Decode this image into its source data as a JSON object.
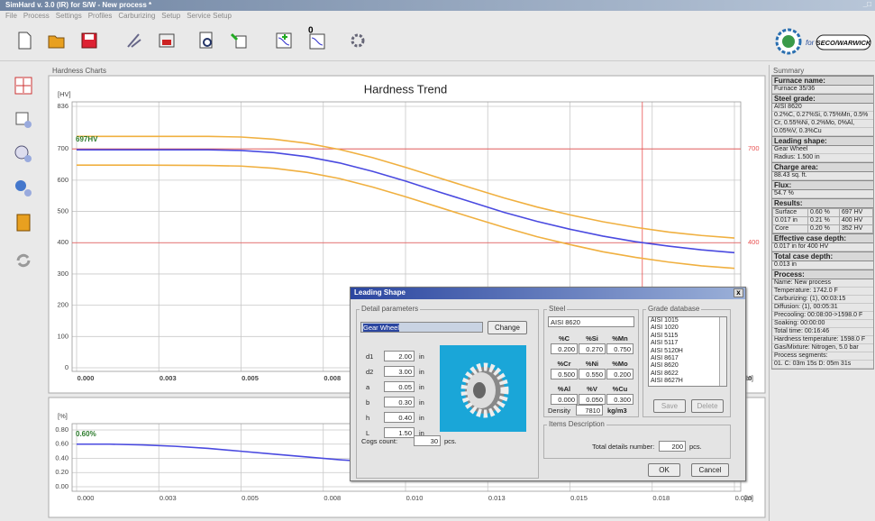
{
  "window": {
    "title": "SimHard v. 3.0 (IR) for S/W - New process *",
    "menu": [
      "File",
      "Process",
      "Settings",
      "Profiles",
      "Carburizing",
      "Setup",
      "Service Setup"
    ],
    "logo_text": "for",
    "logo_brand": "SECO/WARWICK"
  },
  "charts_panel": {
    "title": "Hardness Charts"
  },
  "hardness_chart": {
    "type": "line",
    "title": "Hardness Trend",
    "y_label": "[HV]",
    "x_label": "[in]",
    "annotation": "697HV",
    "x": [
      0,
      0.002,
      0.004,
      0.005,
      0.006,
      0.007,
      0.008,
      0.009,
      0.01,
      0.011,
      0.012,
      0.013,
      0.014,
      0.015,
      0.016,
      0.017,
      0.018,
      0.019,
      0.02
    ],
    "series": [
      {
        "color": "#f0b040",
        "values": [
          740,
          740,
          740,
          738,
          731,
          718,
          698,
          672,
          641,
          608,
          575,
          543,
          514,
          489,
          467,
          449,
          434,
          423,
          415
        ]
      },
      {
        "color": "#f0b040",
        "values": [
          648,
          648,
          647,
          645,
          638,
          625,
          605,
          578,
          547,
          514,
          481,
          449,
          419,
          394,
          371,
          353,
          338,
          326,
          318
        ]
      },
      {
        "color": "#4a4ae0",
        "values": [
          697,
          697,
          697,
          695,
          688,
          675,
          655,
          628,
          597,
          563,
          530,
          497,
          468,
          443,
          421,
          403,
          389,
          377,
          368
        ]
      }
    ],
    "xlim": [
      0,
      0.02
    ],
    "ylim": [
      0,
      836
    ],
    "xticks": [
      {
        "value": 0,
        "label": "0.000"
      },
      {
        "value": 0.0025,
        "label": "0.003"
      },
      {
        "value": 0.005,
        "label": "0.005"
      },
      {
        "value": 0.0075,
        "label": "0.008"
      },
      {
        "value": 0.01,
        "label": "0.010"
      },
      {
        "value": 0.0125,
        "label": "0.013"
      },
      {
        "value": 0.015,
        "label": "0.015"
      },
      {
        "value": 0.0175,
        "label": "0.018"
      },
      {
        "value": 0.02,
        "label": "0.020"
      }
    ],
    "yticks": [
      0,
      100,
      200,
      300,
      400,
      500,
      600,
      700,
      836
    ],
    "hlines": [
      700,
      400
    ],
    "vline": 0.0172,
    "marker_color": "#e85050",
    "grid": true
  },
  "carbon_chart": {
    "type": "line",
    "y_label": "[%]",
    "x_label": "[in]",
    "annotation": "0.60%",
    "x": [
      0,
      0.001,
      0.002,
      0.003,
      0.004,
      0.005,
      0.006,
      0.007,
      0.008,
      0.009,
      0.01,
      0.012,
      0.014,
      0.016,
      0.018,
      0.02
    ],
    "series": [
      {
        "color": "#4a4ae0",
        "values": [
          0.6,
          0.6,
          0.59,
          0.57,
          0.54,
          0.5,
          0.46,
          0.42,
          0.38,
          0.35,
          0.32,
          0.28,
          0.25,
          0.22,
          0.21,
          0.2
        ]
      }
    ],
    "xlim": [
      0,
      0.02
    ],
    "ylim": [
      0,
      0.8
    ],
    "xticks": [
      {
        "value": 0,
        "label": "0.000"
      },
      {
        "value": 0.0025,
        "label": "0.003"
      },
      {
        "value": 0.005,
        "label": "0.005"
      },
      {
        "value": 0.0075,
        "label": "0.008"
      },
      {
        "value": 0.01,
        "label": "0.010"
      },
      {
        "value": 0.0125,
        "label": "0.013"
      },
      {
        "value": 0.015,
        "label": "0.015"
      },
      {
        "value": 0.0175,
        "label": "0.018"
      },
      {
        "value": 0.02,
        "label": "0.020"
      }
    ],
    "yticks": [
      {
        "value": 0,
        "label": "0.00"
      },
      {
        "value": 0.2,
        "label": "0.20"
      },
      {
        "value": 0.4,
        "label": "0.40"
      },
      {
        "value": 0.6,
        "label": "0.60"
      },
      {
        "value": 0.8,
        "label": "0.80"
      }
    ],
    "grid": true
  },
  "dialog": {
    "title": "Leading Shape",
    "close": "x",
    "detail": {
      "heading": "Detail parameters",
      "shape": "Gear Wheel",
      "change": "Change",
      "params": [
        [
          "d1",
          "2.00",
          "in"
        ],
        [
          "d2",
          "3.00",
          "in"
        ],
        [
          "a",
          "0.05",
          "in"
        ],
        [
          "b",
          "0.30",
          "in"
        ],
        [
          "h",
          "0.40",
          "in"
        ],
        [
          "L",
          "1.50",
          "in"
        ]
      ],
      "cogs_label": "Cogs count:",
      "cogs": "30",
      "cogs_unit": "pcs."
    },
    "steel": {
      "heading": "Steel",
      "grade": "AISI 8620",
      "rows": [
        [
          [
            "%C",
            "0.200"
          ],
          [
            "%Si",
            "0.270"
          ],
          [
            "%Mn",
            "0.750"
          ]
        ],
        [
          [
            "%Cr",
            "0.500"
          ],
          [
            "%Ni",
            "0.550"
          ],
          [
            "%Mo",
            "0.200"
          ]
        ],
        [
          [
            "%Al",
            "0.000"
          ],
          [
            "%V",
            "0.050"
          ],
          [
            "%Cu",
            "0.300"
          ]
        ]
      ],
      "density_label": "Density",
      "density": "7810",
      "density_unit": "kg/m3"
    },
    "grades": {
      "heading": "Grade database",
      "items": [
        "AISI 1015",
        "AISI 1020",
        "AISI 5115",
        "AISI 5117",
        "AISI 5120H",
        "AISI 8617",
        "AISI 8620",
        "AISI 8622",
        "AISI 8627H"
      ],
      "save": "Save",
      "delete": "Delete"
    },
    "items": {
      "heading": "Items Description",
      "total_label": "Total details number:",
      "total": "200",
      "unit": "pcs."
    },
    "ok": "OK",
    "cancel": "Cancel"
  },
  "summary": {
    "title": "Summary",
    "sections": [
      {
        "heading": "Furnace name:",
        "lines": [
          "Furnace 35/36"
        ]
      },
      {
        "heading": "Steel grade:",
        "lines": [
          "AISI 8620",
          "0.2%C, 0.27%Si, 0.75%Mn, 0.5%",
          "Cr, 0.55%Ni, 0.2%Mo, 0%Al,",
          "0.05%V, 0.3%Cu"
        ]
      },
      {
        "heading": "Leading shape:",
        "lines": [
          "Gear Wheel",
          "Radius: 1.500 in"
        ]
      },
      {
        "heading": "Charge area:",
        "lines": [
          "88.43 sq. ft."
        ]
      },
      {
        "heading": "Flux:",
        "lines": [
          "54.7 %"
        ]
      },
      {
        "heading": "Results:",
        "rows": [
          [
            "Surface",
            "0.60 %",
            "697 HV"
          ],
          [
            "0.017 in",
            "0.21 %",
            "400 HV"
          ],
          [
            "Core",
            "0.20 %",
            "352 HV"
          ]
        ]
      },
      {
        "heading": "Effective case depth:",
        "lines": [
          "0.017 in for 400 HV"
        ]
      },
      {
        "heading": "Total case depth:",
        "lines": [
          "0.013 in"
        ]
      },
      {
        "heading": "Process:",
        "lines": [
          "Name: New process",
          "Temperature: 1742.0 F",
          "Carburizing: (1), 00:03:15",
          "Diffusion: (1), 00:05:31",
          "Precooling: 00:08:00->1598.0 F",
          "Soaking: 00:00:00",
          "Total time: 00:16:46",
          "Hardness temperature: 1598.0 F",
          "Gas/Mixture: Nitrogen, 5.0 bar",
          "Process segments:",
          "01. C: 03m 15s    D: 05m 31s"
        ]
      }
    ]
  }
}
